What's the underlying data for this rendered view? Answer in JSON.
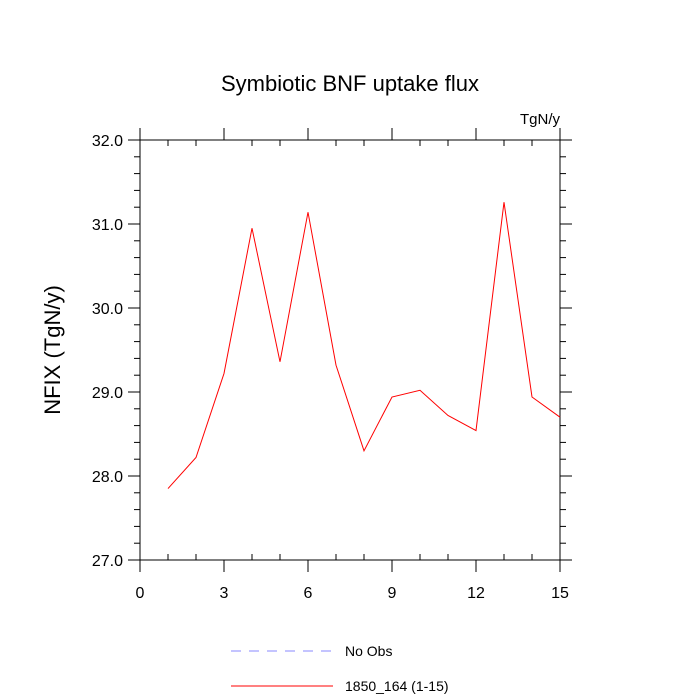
{
  "chart_data": {
    "type": "line",
    "title": "Symbiotic BNF uptake flux",
    "units": "TgN/y",
    "ylabel": "NFIX  (TgN/y)",
    "xlabel": "",
    "xlim": [
      0,
      15
    ],
    "ylim": [
      27.0,
      32.0
    ],
    "xticks": [
      0,
      3,
      6,
      9,
      12,
      15
    ],
    "yticks": [
      "27.0",
      "28.0",
      "29.0",
      "30.0",
      "31.0",
      "32.0"
    ],
    "grid": false,
    "legend_position": "bottom",
    "series": [
      {
        "name": "No Obs",
        "color": "#8888ff",
        "style": "dashed",
        "x": [],
        "y": []
      },
      {
        "name": "1850_164 (1-15)",
        "color": "#ff0000",
        "style": "solid",
        "x": [
          1,
          2,
          3,
          4,
          5,
          6,
          7,
          8,
          9,
          10,
          11,
          12,
          13,
          14,
          15
        ],
        "y": [
          27.85,
          28.22,
          29.22,
          30.95,
          29.36,
          31.14,
          29.32,
          28.3,
          28.94,
          29.02,
          28.72,
          28.54,
          31.26,
          28.94,
          28.7
        ]
      }
    ]
  }
}
